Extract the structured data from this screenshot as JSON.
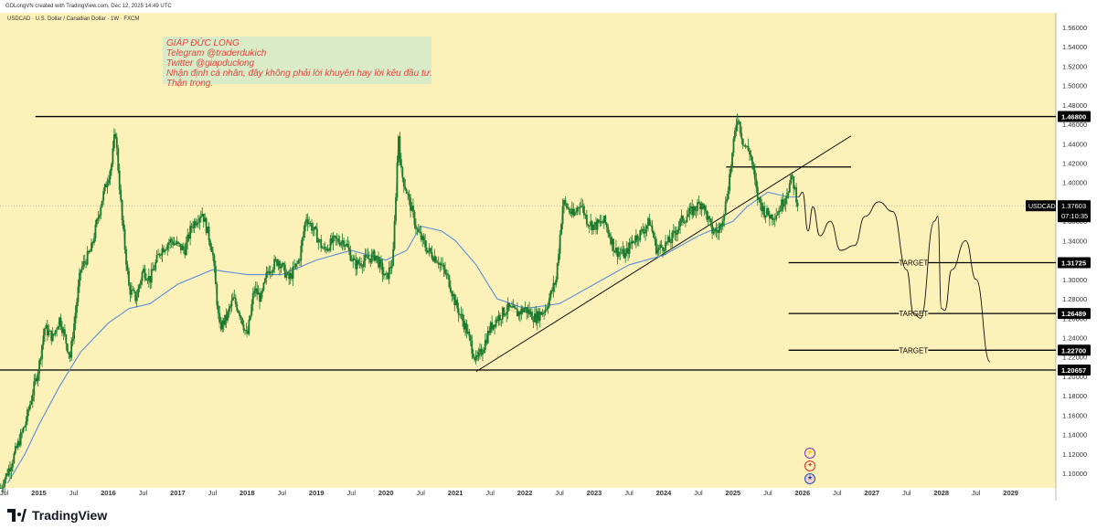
{
  "header": {
    "credit": "GDLongVN created with TradingView.com, Dec 12, 2025 14:49 UTC"
  },
  "symbol_line": "USDCAD · U.S. Dollar / Canadian Dollar · 1W · FXCM",
  "note": {
    "lines": [
      "GIÁP ĐỨC LONG",
      "Telegram @traderdukich",
      "Twitter @giapduclong",
      "Nhận định cá nhân, đây không phải lời khuyên hay lời kêu đầu tư.",
      "Thận trọng."
    ]
  },
  "footer": {
    "brand": "TradingView"
  },
  "colors": {
    "background": "#fbf1b9",
    "candle": "#1b7a2d",
    "ma": "#5b8fd6",
    "line": "#000000",
    "note_text": "#e53935"
  },
  "chart_data": {
    "type": "line",
    "symbol": "USDCAD",
    "timeframe": "1W",
    "y_axis": {
      "range": [
        1.085,
        1.575
      ],
      "ticks": [
        "1.56000",
        "1.54000",
        "1.52000",
        "1.50000",
        "1.48000",
        "1.46000",
        "1.44000",
        "1.42000",
        "1.40000",
        "1.38000",
        "1.36000",
        "1.34000",
        "1.32000",
        "1.30000",
        "1.28000",
        "1.26000",
        "1.24000",
        "1.22000",
        "1.20000",
        "1.18000",
        "1.16000",
        "1.14000",
        "1.12000",
        "1.10000"
      ]
    },
    "x_axis": {
      "range": [
        2014.44,
        2029.65
      ],
      "ticks": [
        {
          "label": "Jul",
          "t": 2014.5
        },
        {
          "label": "2015",
          "t": 2015.0
        },
        {
          "label": "Jul",
          "t": 2015.5
        },
        {
          "label": "2016",
          "t": 2016.0
        },
        {
          "label": "Jul",
          "t": 2016.5
        },
        {
          "label": "2017",
          "t": 2017.0
        },
        {
          "label": "Jul",
          "t": 2017.5
        },
        {
          "label": "2018",
          "t": 2018.0
        },
        {
          "label": "Jul",
          "t": 2018.5
        },
        {
          "label": "2019",
          "t": 2019.0
        },
        {
          "label": "Jul",
          "t": 2019.5
        },
        {
          "label": "2020",
          "t": 2020.0
        },
        {
          "label": "Jul",
          "t": 2020.5
        },
        {
          "label": "2021",
          "t": 2021.0
        },
        {
          "label": "Jul",
          "t": 2021.5
        },
        {
          "label": "2022",
          "t": 2022.0
        },
        {
          "label": "Jul",
          "t": 2022.5
        },
        {
          "label": "2023",
          "t": 2023.0
        },
        {
          "label": "Jul",
          "t": 2023.5
        },
        {
          "label": "2024",
          "t": 2024.0
        },
        {
          "label": "Jul",
          "t": 2024.5
        },
        {
          "label": "2025",
          "t": 2025.0
        },
        {
          "label": "Jul",
          "t": 2025.5
        },
        {
          "label": "2026",
          "t": 2026.0
        },
        {
          "label": "Jul",
          "t": 2026.5
        },
        {
          "label": "2027",
          "t": 2027.0
        },
        {
          "label": "Jul",
          "t": 2027.5
        },
        {
          "label": "2028",
          "t": 2028.0
        },
        {
          "label": "Jul",
          "t": 2028.5
        },
        {
          "label": "2029",
          "t": 2029.0
        }
      ]
    },
    "price": {
      "t": [
        2014.45,
        2014.6,
        2014.8,
        2015.0,
        2015.08,
        2015.2,
        2015.3,
        2015.45,
        2015.6,
        2015.75,
        2015.9,
        2016.05,
        2016.1,
        2016.2,
        2016.3,
        2016.4,
        2016.5,
        2016.6,
        2016.75,
        2016.9,
        2017.0,
        2017.1,
        2017.2,
        2017.35,
        2017.5,
        2017.6,
        2017.7,
        2017.8,
        2017.9,
        2018.0,
        2018.1,
        2018.2,
        2018.3,
        2018.45,
        2018.6,
        2018.75,
        2018.85,
        2019.0,
        2019.1,
        2019.25,
        2019.4,
        2019.55,
        2019.7,
        2019.85,
        2020.0,
        2020.1,
        2020.18,
        2020.22,
        2020.3,
        2020.45,
        2020.6,
        2020.75,
        2020.9,
        2021.0,
        2021.15,
        2021.3,
        2021.4,
        2021.5,
        2021.6,
        2021.75,
        2021.9,
        2022.0,
        2022.15,
        2022.3,
        2022.45,
        2022.55,
        2022.7,
        2022.8,
        2022.9,
        2023.0,
        2023.15,
        2023.3,
        2023.45,
        2023.55,
        2023.7,
        2023.8,
        2023.9,
        2024.0,
        2024.1,
        2024.25,
        2024.4,
        2024.55,
        2024.7,
        2024.8,
        2024.9,
        2025.0,
        2025.06,
        2025.15,
        2025.25,
        2025.35,
        2025.45,
        2025.55,
        2025.65,
        2025.75,
        2025.85,
        2025.94
      ],
      "y": [
        1.085,
        1.11,
        1.15,
        1.21,
        1.25,
        1.24,
        1.26,
        1.22,
        1.31,
        1.33,
        1.38,
        1.42,
        1.455,
        1.36,
        1.29,
        1.28,
        1.31,
        1.3,
        1.33,
        1.34,
        1.335,
        1.33,
        1.355,
        1.37,
        1.33,
        1.25,
        1.26,
        1.28,
        1.265,
        1.24,
        1.29,
        1.28,
        1.31,
        1.32,
        1.3,
        1.32,
        1.365,
        1.345,
        1.33,
        1.34,
        1.34,
        1.315,
        1.32,
        1.325,
        1.3,
        1.32,
        1.45,
        1.41,
        1.39,
        1.35,
        1.33,
        1.32,
        1.3,
        1.275,
        1.25,
        1.215,
        1.23,
        1.25,
        1.26,
        1.27,
        1.265,
        1.27,
        1.26,
        1.27,
        1.3,
        1.38,
        1.365,
        1.38,
        1.36,
        1.355,
        1.36,
        1.33,
        1.325,
        1.34,
        1.35,
        1.36,
        1.33,
        1.335,
        1.34,
        1.36,
        1.37,
        1.38,
        1.35,
        1.35,
        1.38,
        1.435,
        1.47,
        1.44,
        1.43,
        1.385,
        1.37,
        1.365,
        1.37,
        1.385,
        1.405,
        1.376
      ]
    },
    "moving_average": {
      "t": [
        2014.55,
        2014.8,
        2015.0,
        2015.3,
        2015.6,
        2016.0,
        2016.3,
        2016.6,
        2017.0,
        2017.5,
        2018.0,
        2018.5,
        2019.0,
        2019.5,
        2020.0,
        2020.3,
        2020.5,
        2020.8,
        2021.0,
        2021.3,
        2021.6,
        2022.0,
        2022.5,
        2023.0,
        2023.5,
        2024.0,
        2024.5,
        2025.0,
        2025.2,
        2025.5,
        2025.8,
        2025.94
      ],
      "y": [
        1.09,
        1.12,
        1.15,
        1.19,
        1.225,
        1.255,
        1.27,
        1.275,
        1.295,
        1.31,
        1.305,
        1.305,
        1.32,
        1.33,
        1.32,
        1.33,
        1.355,
        1.35,
        1.34,
        1.315,
        1.28,
        1.27,
        1.275,
        1.295,
        1.315,
        1.325,
        1.345,
        1.36,
        1.375,
        1.39,
        1.385,
        1.385
      ]
    },
    "projection": {
      "t": [
        2025.94,
        2026.0,
        2026.08,
        2026.15,
        2026.25,
        2026.4,
        2026.55,
        2026.75,
        2026.9,
        2027.1,
        2027.3,
        2027.5,
        2027.6,
        2027.7,
        2027.9,
        2027.95,
        2028.0,
        2028.05,
        2028.15,
        2028.35,
        2028.5,
        2028.7
      ],
      "y": [
        1.385,
        1.39,
        1.35,
        1.375,
        1.345,
        1.36,
        1.33,
        1.335,
        1.365,
        1.38,
        1.37,
        1.31,
        1.265,
        1.26,
        1.36,
        1.365,
        1.27,
        1.268,
        1.31,
        1.34,
        1.3,
        1.215
      ]
    },
    "horizontal_levels": [
      {
        "value": 1.468,
        "label": "1.46800",
        "from": 2014.95,
        "to": 2029.65
      },
      {
        "value": 1.20657,
        "label": "1.20657",
        "from": 2014.44,
        "to": 2029.65
      },
      {
        "value": 1.31725,
        "label": "1.31725",
        "from": 2025.8,
        "to": 2029.65,
        "text": "TARGET"
      },
      {
        "value": 1.26489,
        "label": "1.26489",
        "from": 2025.8,
        "to": 2029.65,
        "text": "TARGET"
      },
      {
        "value": 1.227,
        "label": "1.22700",
        "from": 2025.8,
        "to": 2029.65,
        "text": "TARGET"
      },
      {
        "value": 1.416,
        "label": "",
        "from": 2024.9,
        "to": 2026.7
      }
    ],
    "trendline": {
      "t": [
        2021.3,
        2026.7
      ],
      "y": [
        1.205,
        1.448
      ]
    },
    "last_price": {
      "symbol": "USDCAD",
      "value": "1.37603",
      "countdown": "07:10:35",
      "y": 1.376
    }
  }
}
